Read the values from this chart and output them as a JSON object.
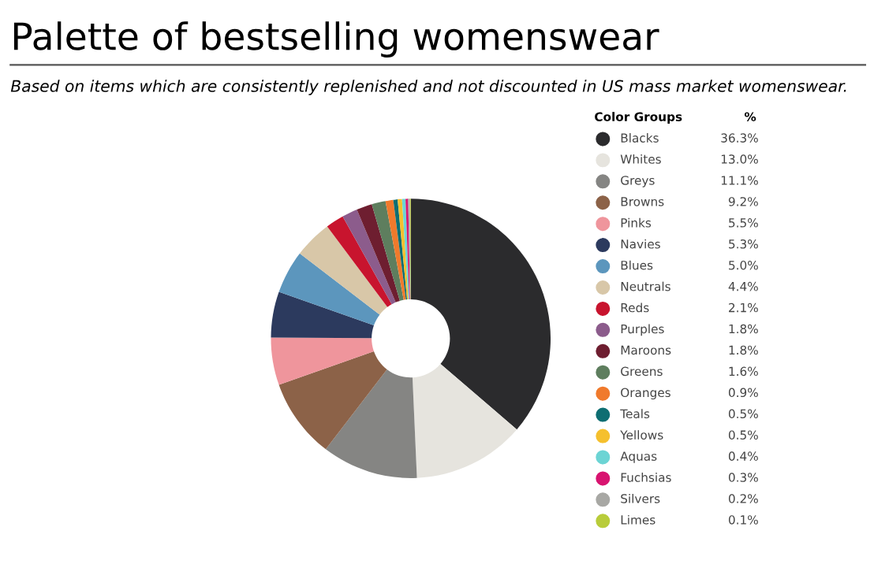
{
  "chart_data": {
    "type": "donut",
    "title": "Palette of bestselling womenswear",
    "subtitle": "Based on items which are consistently replenished and not discounted in US mass market womenswear.",
    "legend_title": "Color Groups",
    "annotations": [
      "%"
    ],
    "legend": "right",
    "categories": [
      "Blacks",
      "Whites",
      "Greys",
      "Browns",
      "Pinks",
      "Navies",
      "Blues",
      "Neutrals",
      "Reds",
      "Purples",
      "Maroons",
      "Greens",
      "Oranges",
      "Teals",
      "Yellows",
      "Aquas",
      "Fuchsias",
      "Silvers",
      "Limes"
    ],
    "values": [
      36.3,
      13.0,
      11.1,
      9.2,
      5.5,
      5.3,
      5.0,
      4.4,
      2.1,
      1.8,
      1.8,
      1.6,
      0.9,
      0.5,
      0.5,
      0.4,
      0.3,
      0.2,
      0.1
    ],
    "value_labels": [
      "36.3%",
      "13.0%",
      "11.1%",
      "9.2%",
      "5.5%",
      "5.3%",
      "5.0%",
      "4.4%",
      "2.1%",
      "1.8%",
      "1.8%",
      "1.6%",
      "0.9%",
      "0.5%",
      "0.5%",
      "0.4%",
      "0.3%",
      "0.2%",
      "0.1%"
    ],
    "colors": [
      "#2b2b2d",
      "#e6e4de",
      "#858583",
      "#8c6248",
      "#ef959c",
      "#2c3a5e",
      "#5c96bd",
      "#d8c7a8",
      "#c8142e",
      "#8c5c8c",
      "#6e1e30",
      "#5e7e5e",
      "#f07a2c",
      "#0e6e72",
      "#f5c02e",
      "#6cd4d4",
      "#d81470",
      "#a8a8a4",
      "#b8cc3a"
    ]
  }
}
